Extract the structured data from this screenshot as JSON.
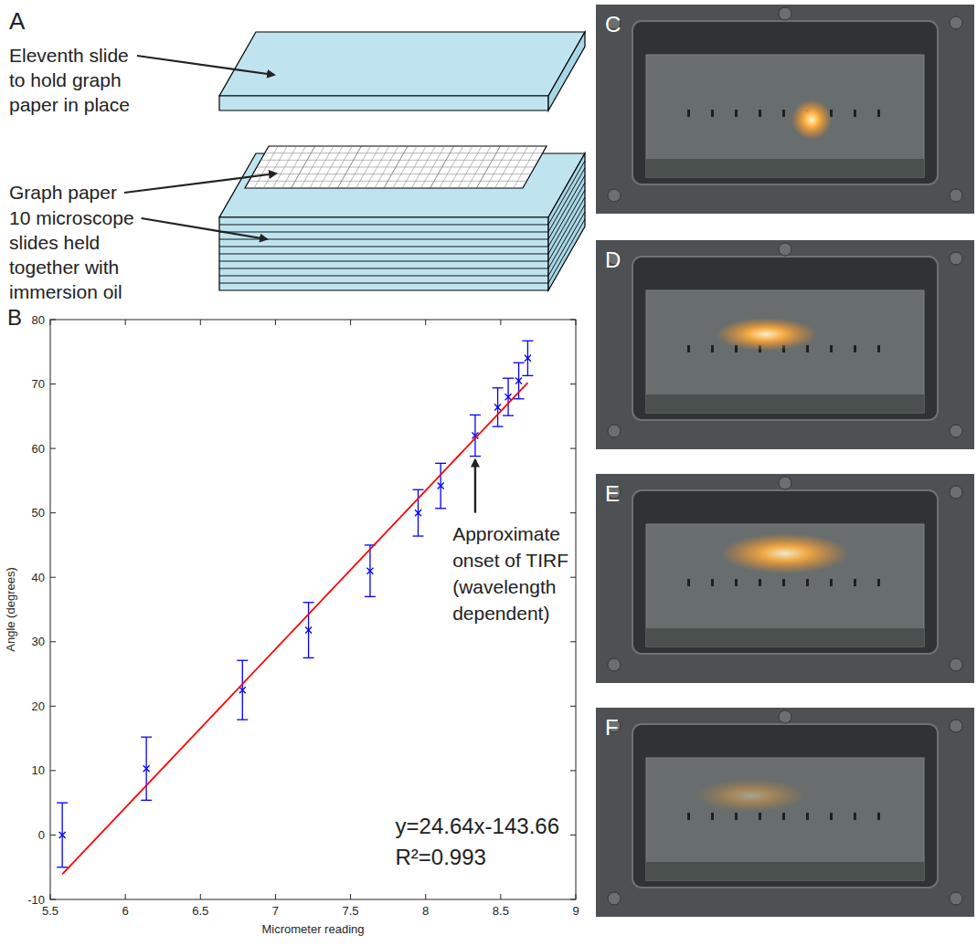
{
  "panel_a": {
    "letter": "A",
    "labels": [
      {
        "lines": [
          "Eleventh slide",
          "to hold graph",
          "paper in place"
        ]
      },
      {
        "lines": [
          "Graph paper"
        ]
      },
      {
        "lines": [
          "10 microscope",
          "slides held",
          "together with",
          "immersion oil"
        ]
      }
    ]
  },
  "photos": [
    "C",
    "D",
    "E",
    "F"
  ],
  "chart_data": {
    "letter": "B",
    "type": "scatter",
    "x_label": "Micrometer reading",
    "y_label": "Angle (degrees)",
    "xlim": [
      5.5,
      9
    ],
    "ylim": [
      -10,
      80
    ],
    "xticks": [
      5.5,
      6,
      6.5,
      7,
      7.5,
      8,
      8.5,
      9
    ],
    "yticks": [
      -10,
      0,
      10,
      20,
      30,
      40,
      50,
      60,
      70,
      80
    ],
    "grid": false,
    "series": [
      {
        "type": "scatter",
        "color": "#0000ff",
        "marker": "x",
        "x": [
          5.58,
          6.14,
          6.78,
          7.22,
          7.63,
          7.95,
          8.1,
          8.33,
          8.48,
          8.55,
          8.62,
          8.68
        ],
        "values": [
          0,
          10.3,
          22.5,
          31.8,
          41,
          50,
          54.2,
          62,
          66.4,
          68,
          70.5,
          74
        ],
        "errors": [
          5,
          4.9,
          4.6,
          4.3,
          4,
          3.6,
          3.5,
          3.2,
          3,
          2.9,
          2.8,
          2.7
        ]
      },
      {
        "type": "line",
        "color": "#ff0000",
        "line_style": "solid",
        "x": [
          5.58,
          8.68
        ],
        "values": [
          -6.1,
          70.2
        ]
      }
    ],
    "annotations": [
      {
        "lines": [
          "Approximate",
          "onset of TIRF",
          "(wavelength",
          "dependent)"
        ],
        "x": 8.33,
        "y": 58.8
      }
    ],
    "fit_text": [
      "y=24.64x-143.66",
      "R²=0.993"
    ]
  }
}
